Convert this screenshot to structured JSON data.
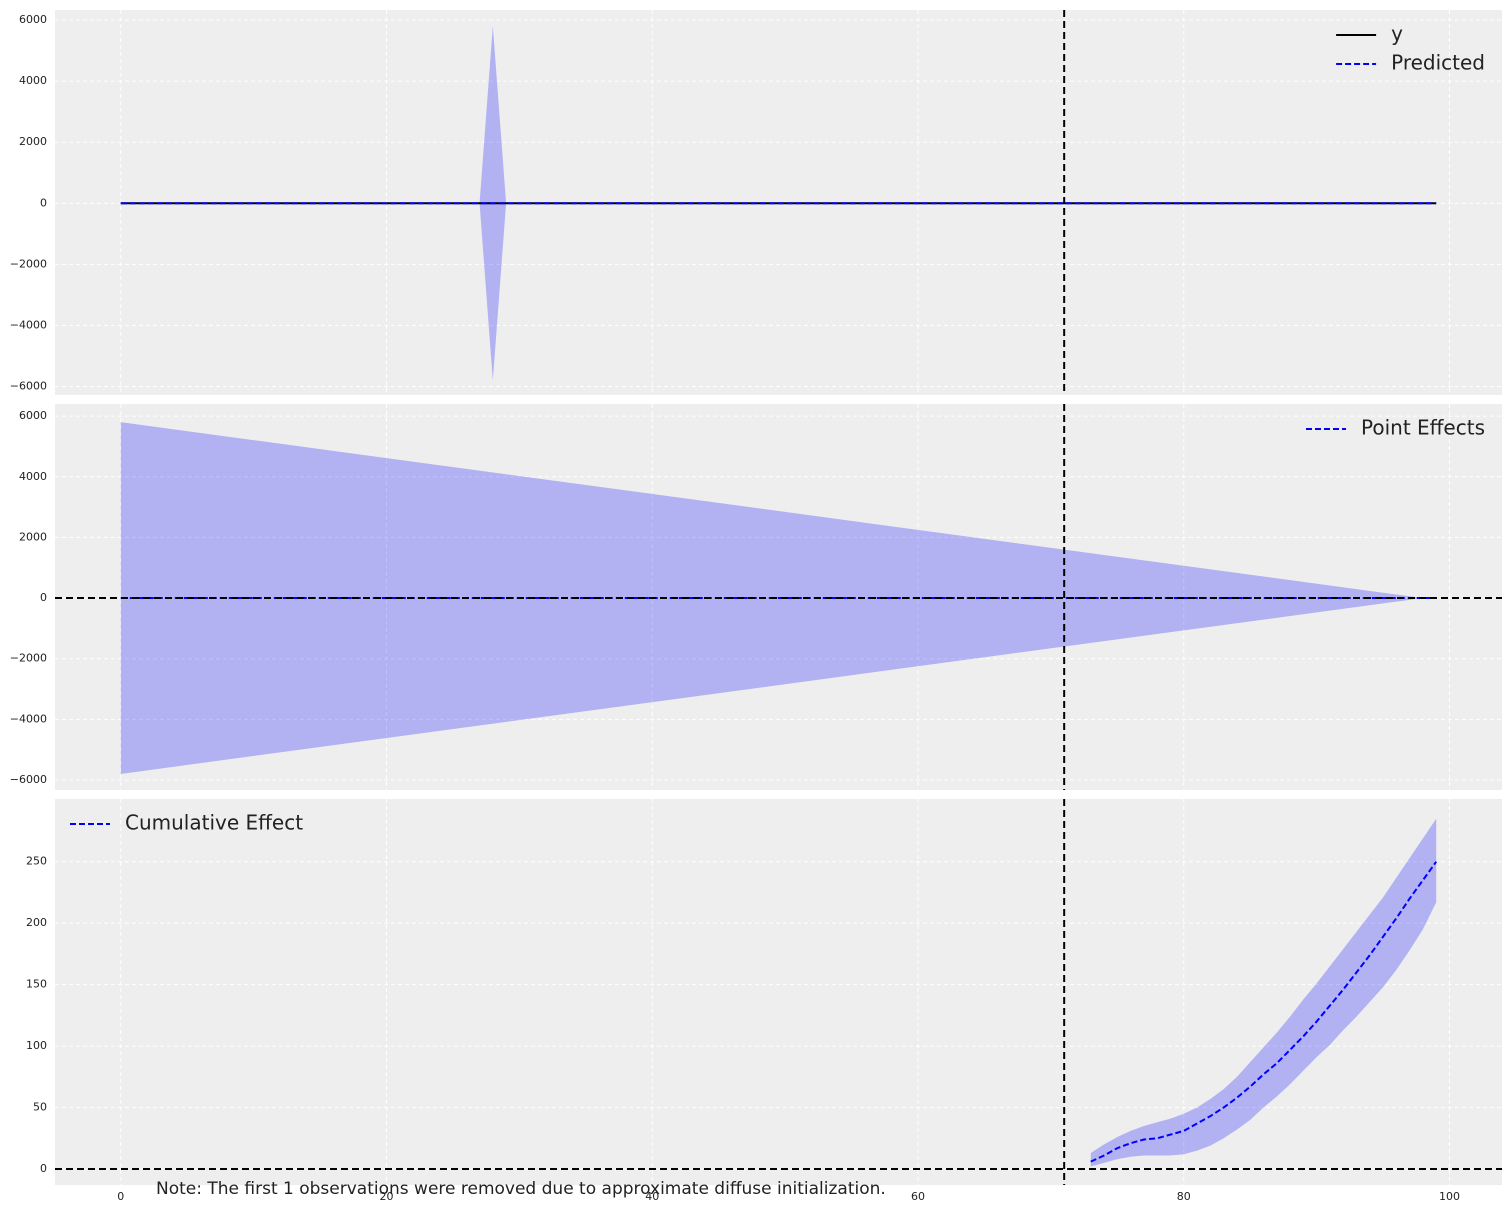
{
  "chart_data": [
    {
      "type": "line",
      "x": [
        0,
        27,
        28,
        29,
        99
      ],
      "series": [
        {
          "name": "y",
          "color": "#000000",
          "linestyle": "solid",
          "values": [
            0,
            0,
            0,
            0,
            0
          ]
        },
        {
          "name": "Predicted",
          "color": "#0000ff",
          "linestyle": "dashed",
          "values": [
            0,
            0,
            0,
            0,
            0
          ]
        }
      ],
      "interval": {
        "color": "#0000ff",
        "alpha": 0.25,
        "lower": [
          0,
          0,
          -5800,
          0,
          0
        ],
        "upper": [
          0,
          0,
          5800,
          0,
          0
        ]
      },
      "xlim": [
        -4.95,
        103.95
      ],
      "xticks": [
        0,
        20,
        40,
        60,
        80,
        100
      ],
      "ylim": [
        -6280,
        6330
      ],
      "yticks": [
        {
          "value": -6000,
          "label": "−6000"
        },
        {
          "value": -4000,
          "label": "−4000"
        },
        {
          "value": -2000,
          "label": "−2000"
        },
        0,
        2000,
        4000,
        6000
      ],
      "vlines": [
        71
      ],
      "hlines": [],
      "grid": true,
      "legend": "upper right"
    },
    {
      "type": "line",
      "x": [
        0,
        98,
        99
      ],
      "series": [
        {
          "name": "Point Effects",
          "color": "#0000ff",
          "linestyle": "dashed",
          "values": [
            0,
            0,
            0
          ]
        }
      ],
      "interval": {
        "color": "#0000ff",
        "alpha": 0.25,
        "lower": [
          -5800,
          0,
          0
        ],
        "upper": [
          5800,
          0,
          0
        ]
      },
      "xlim": [
        -4.95,
        103.95
      ],
      "xticks": [
        0,
        20,
        40,
        60,
        80,
        100
      ],
      "ylim": [
        -6330,
        6400
      ],
      "yticks": [
        {
          "value": -6000,
          "label": "−6000"
        },
        {
          "value": -4000,
          "label": "−4000"
        },
        {
          "value": -2000,
          "label": "−2000"
        },
        0,
        2000,
        4000,
        6000
      ],
      "vlines": [
        71
      ],
      "hlines": [
        0
      ],
      "grid": true,
      "legend": "upper right"
    },
    {
      "type": "line",
      "x": [
        73,
        74,
        75,
        76,
        77,
        78,
        79,
        80,
        81,
        82,
        83,
        84,
        85,
        86,
        87,
        88,
        89,
        90,
        91,
        92,
        93,
        94,
        95,
        96,
        97,
        98,
        99
      ],
      "series": [
        {
          "name": "Cumulative Effect",
          "color": "#0000ff",
          "linestyle": "dashed",
          "values": [
            6,
            11,
            17,
            21,
            24,
            25,
            28,
            31,
            37,
            43,
            50,
            58,
            67,
            77,
            86,
            97,
            108,
            120,
            133,
            146,
            160,
            174,
            189,
            204,
            220,
            235,
            250
          ]
        }
      ],
      "interval": {
        "color": "#0000ff",
        "alpha": 0.25,
        "lower": [
          2,
          5,
          8,
          10,
          11,
          11,
          11,
          12,
          15,
          19,
          25,
          32,
          40,
          50,
          59,
          69,
          80,
          91,
          101,
          113,
          124,
          136,
          148,
          162,
          178,
          195,
          217
        ],
        "upper": [
          13,
          20,
          26,
          31,
          35,
          38,
          41,
          45,
          50,
          57,
          65,
          75,
          87,
          99,
          111,
          124,
          138,
          151,
          165,
          179,
          193,
          207,
          221,
          237,
          253,
          269,
          285
        ]
      },
      "xlim": [
        -4.95,
        103.95
      ],
      "xticks": [
        0,
        20,
        40,
        60,
        80,
        100
      ],
      "ylim": [
        -13,
        301
      ],
      "yticks": [
        0,
        50,
        100,
        150,
        200,
        250
      ],
      "vlines": [
        71
      ],
      "hlines": [
        0
      ],
      "grid": true,
      "legend": "upper left"
    }
  ],
  "note": "Note: The first 1 observations were removed due to approximate diffuse initialization."
}
